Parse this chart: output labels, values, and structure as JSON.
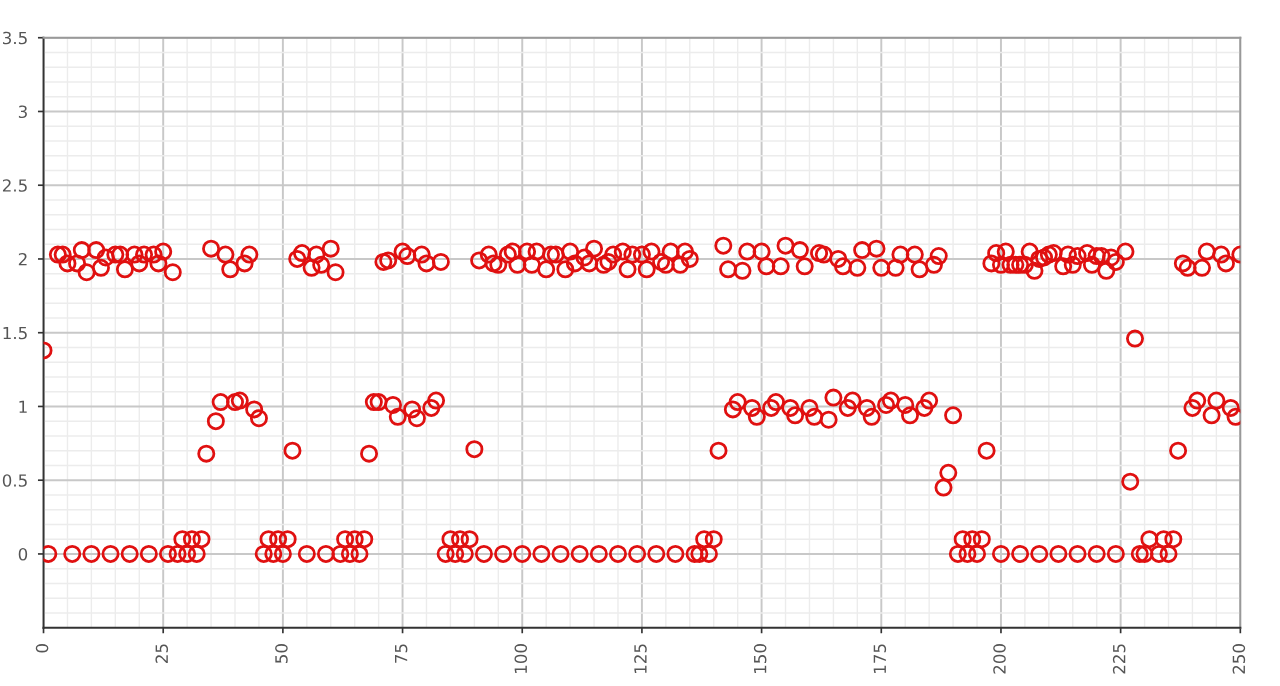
{
  "chart_data": {
    "type": "scatter",
    "marker": "circle",
    "grid": true,
    "xlim": [
      0,
      250
    ],
    "xticks": [
      0,
      25,
      50,
      75,
      100,
      125,
      150,
      175,
      200,
      225,
      250
    ],
    "ylim": [
      -0.5,
      3.5
    ],
    "yticks": [
      0,
      0.5,
      1,
      1.5,
      2,
      2.5,
      3,
      3.5
    ],
    "series": [
      {
        "color": "#e01010",
        "x": [
          0,
          1,
          3,
          4,
          5,
          6,
          7,
          8,
          9,
          10,
          11,
          12,
          13,
          14,
          15,
          16,
          17,
          18,
          19,
          20,
          21,
          22,
          23,
          24,
          25,
          26,
          27,
          28,
          29,
          30,
          31,
          32,
          33,
          34,
          35,
          36,
          37,
          38,
          39,
          40,
          41,
          42,
          43,
          44,
          45,
          46,
          47,
          48,
          49,
          50,
          51,
          52,
          53,
          54,
          55,
          56,
          57,
          58,
          59,
          60,
          61,
          62,
          63,
          64,
          65,
          66,
          67,
          68,
          69,
          70,
          71,
          72,
          73,
          74,
          75,
          76,
          77,
          78,
          79,
          80,
          81,
          82,
          83,
          84,
          85,
          86,
          87,
          88,
          89,
          90,
          91,
          92,
          93,
          94,
          95,
          96,
          97,
          98,
          99,
          100,
          101,
          102,
          103,
          104,
          105,
          106,
          107,
          108,
          109,
          110,
          111,
          112,
          113,
          114,
          115,
          116,
          117,
          118,
          119,
          120,
          121,
          122,
          123,
          124,
          125,
          126,
          127,
          128,
          129,
          130,
          131,
          132,
          133,
          134,
          135,
          136,
          137,
          138,
          139,
          140,
          141,
          142,
          143,
          144,
          145,
          146,
          147,
          148,
          149,
          150,
          151,
          152,
          153,
          154,
          155,
          156,
          157,
          158,
          159,
          160,
          161,
          162,
          163,
          164,
          165,
          166,
          167,
          168,
          169,
          170,
          171,
          172,
          173,
          174,
          175,
          176,
          177,
          178,
          179,
          180,
          181,
          182,
          183,
          184,
          185,
          186,
          187,
          188,
          189,
          190,
          191,
          192,
          193,
          194,
          195,
          196,
          197,
          198,
          199,
          200,
          201,
          202,
          203,
          204,
          205,
          206,
          207,
          208,
          209,
          210,
          211,
          213,
          214,
          215,
          216,
          218,
          219,
          220,
          221,
          222,
          223,
          224,
          226,
          200,
          204,
          208,
          212,
          216,
          220,
          224,
          227,
          228,
          229,
          230,
          231,
          233,
          234,
          235,
          236,
          237,
          238,
          239,
          240,
          241,
          242,
          243,
          244,
          245,
          246,
          247,
          248,
          249,
          250
        ],
        "values": [
          1.38,
          0,
          2.03,
          2.03,
          1.97,
          0,
          1.97,
          2.06,
          1.91,
          0,
          2.06,
          1.94,
          2.01,
          0,
          2.03,
          2.03,
          1.93,
          0,
          2.03,
          1.97,
          2.03,
          0,
          2.03,
          1.97,
          2.05,
          0,
          1.91,
          0,
          0.1,
          0,
          0.1,
          0,
          0.1,
          0.68,
          2.07,
          0.9,
          1.03,
          2.03,
          1.93,
          1.03,
          1.04,
          1.97,
          2.03,
          0.98,
          0.92,
          0,
          0.1,
          0,
          0.1,
          0,
          0.1,
          0.7,
          2.0,
          2.04,
          0,
          1.94,
          2.03,
          1.96,
          0,
          2.07,
          1.91,
          0,
          0.1,
          0,
          0.1,
          0,
          0.1,
          0.68,
          1.03,
          1.03,
          1.98,
          1.99,
          1.01,
          0.93,
          2.05,
          2.02,
          0.98,
          0.92,
          2.03,
          1.97,
          0.99,
          1.04,
          1.98,
          0,
          0.1,
          0,
          0.1,
          0,
          0.1,
          0.71,
          1.99,
          0,
          2.03,
          1.97,
          1.96,
          0,
          2.03,
          2.05,
          1.96,
          0,
          2.05,
          1.96,
          2.05,
          0,
          1.93,
          2.03,
          2.03,
          0,
          1.93,
          2.05,
          1.97,
          0,
          2.01,
          1.97,
          2.07,
          0,
          1.96,
          1.98,
          2.03,
          0,
          2.05,
          1.93,
          2.03,
          0,
          2.03,
          1.93,
          2.05,
          0,
          1.98,
          1.96,
          2.05,
          0,
          1.96,
          2.05,
          2.0,
          0,
          0,
          0.1,
          0,
          0.1,
          0.7,
          2.09,
          1.93,
          0.98,
          1.03,
          1.92,
          2.05,
          0.99,
          0.93,
          2.05,
          1.95,
          0.99,
          1.03,
          1.95,
          2.09,
          0.99,
          0.94,
          2.06,
          1.95,
          0.99,
          0.93,
          2.04,
          2.03,
          0.91,
          1.06,
          2.0,
          1.95,
          0.99,
          1.04,
          1.94,
          2.06,
          0.99,
          0.93,
          2.07,
          1.94,
          1.01,
          1.04,
          1.94,
          2.03,
          1.01,
          0.94,
          2.03,
          1.93,
          0.99,
          1.04,
          1.96,
          2.02,
          0.45,
          0.55,
          0.94,
          0,
          0.1,
          0,
          0.1,
          0,
          0.1,
          0.7,
          1.97,
          2.04,
          1.96,
          2.05,
          1.96,
          1.96,
          1.96,
          1.96,
          2.05,
          1.92,
          2.0,
          2.01,
          2.03,
          2.04,
          1.95,
          2.03,
          1.96,
          2.02,
          2.04,
          1.96,
          2.02,
          2.02,
          1.92,
          2.01,
          1.98,
          2.05,
          0,
          0,
          0,
          0,
          0,
          0,
          0,
          0.49,
          1.46,
          0,
          0,
          0.1,
          0,
          0.1,
          0,
          0.1,
          0.7,
          1.97,
          1.94,
          0.99,
          1.04,
          1.94,
          2.05,
          0.94,
          1.04,
          2.03,
          1.97,
          0.99,
          0.93,
          2.03
        ]
      }
    ]
  }
}
